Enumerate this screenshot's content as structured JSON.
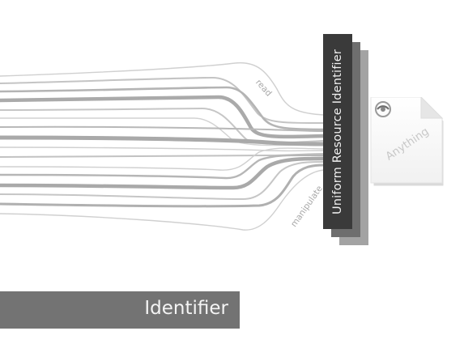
{
  "diagram": {
    "uri_label": "Uniform Resource Identifier",
    "resource_label": "Anything",
    "read_label": "read",
    "manipulate_label": "manipulate",
    "footer_title": "Identifier",
    "colors": {
      "uri_box": "#3a3a3a",
      "uri_shadow_1": "#6e6e6e",
      "uri_shadow_2": "#a3a3a3",
      "wire_light": "#c8c8c8",
      "wire_thick": "#a9a9a9",
      "footer_bar": "#737373",
      "footer_text": "#f4f4f4"
    },
    "icons": [
      "document-icon",
      "browser-logo-icon"
    ]
  }
}
